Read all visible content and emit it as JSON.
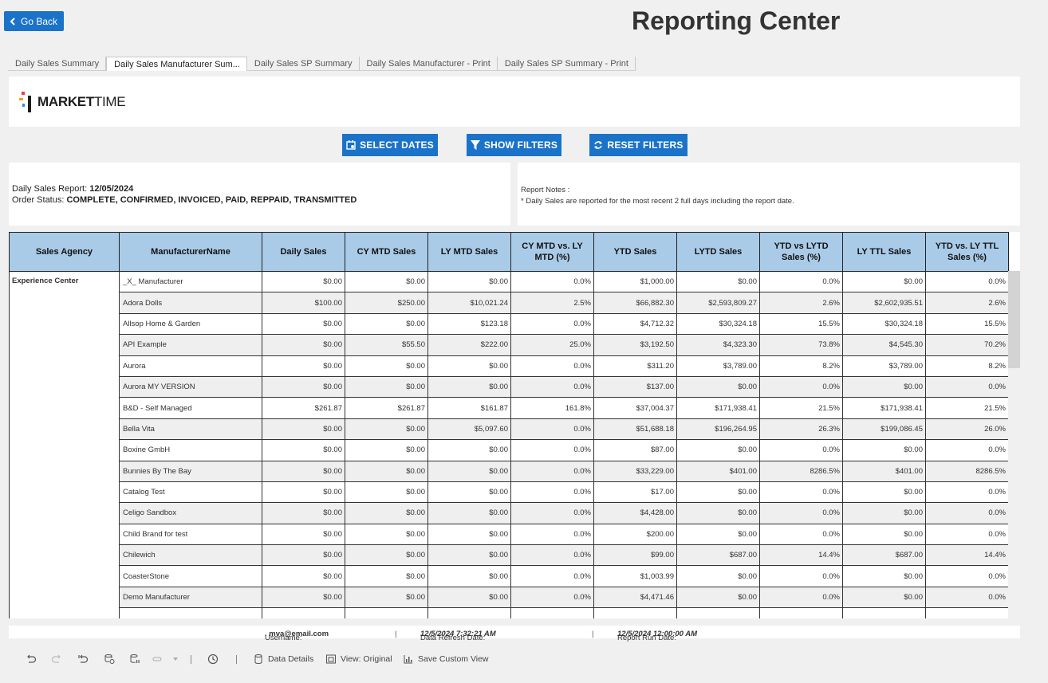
{
  "header": {
    "back_label": "Go Back",
    "title": "Reporting Center"
  },
  "tabs": [
    {
      "label": "Daily Sales Summary",
      "active": false
    },
    {
      "label": "Daily Sales Manufacturer Sum...",
      "active": true
    },
    {
      "label": "Daily Sales SP Summary",
      "active": false
    },
    {
      "label": "Daily Sales Manufacturer - Print",
      "active": false
    },
    {
      "label": "Daily Sales SP Summary - Print",
      "active": false
    }
  ],
  "logo": {
    "bold": "MARKET",
    "light": "TIME"
  },
  "actions": {
    "select_dates": "SELECT DATES",
    "show_filters": "SHOW FILTERS",
    "reset_filters": "RESET FILTERS"
  },
  "report_info": {
    "date_label": "Daily Sales Report:",
    "date_value": "12/05/2024",
    "status_label": "Order Status:",
    "status_value": "COMPLETE, CONFIRMED, INVOICED, PAID, REPPAID, TRANSMITTED",
    "notes_label": "Report Notes :",
    "notes_text": "* Daily Sales are reported for the most recent 2 full days including the report date."
  },
  "table": {
    "columns": [
      "Sales Agency",
      "ManufacturerName",
      "Daily Sales",
      "CY MTD Sales",
      "LY MTD Sales",
      "CY MTD vs. LY MTD (%)",
      "YTD Sales",
      "LYTD Sales",
      "YTD vs LYTD Sales (%)",
      "LY TTL Sales",
      "YTD vs. LY TTL Sales (%)"
    ],
    "agency": "Experience Center",
    "rows": [
      [
        "_X_ Manufacturer",
        "$0.00",
        "$0.00",
        "$0.00",
        "0.0%",
        "$1,000.00",
        "$0.00",
        "0.0%",
        "$0.00",
        "0.0%"
      ],
      [
        "Adora Dolls",
        "$100.00",
        "$250.00",
        "$10,021.24",
        "2.5%",
        "$66,882.30",
        "$2,593,809.27",
        "2.6%",
        "$2,602,935.51",
        "2.6%"
      ],
      [
        "Allsop Home & Garden",
        "$0.00",
        "$0.00",
        "$123.18",
        "0.0%",
        "$4,712.32",
        "$30,324.18",
        "15.5%",
        "$30,324.18",
        "15.5%"
      ],
      [
        "API Example",
        "$0.00",
        "$55.50",
        "$222.00",
        "25.0%",
        "$3,192.50",
        "$4,323.30",
        "73.8%",
        "$4,545.30",
        "70.2%"
      ],
      [
        "Aurora",
        "$0.00",
        "$0.00",
        "$0.00",
        "0.0%",
        "$311.20",
        "$3,789.00",
        "8.2%",
        "$3,789.00",
        "8.2%"
      ],
      [
        "Aurora MY VERSION",
        "$0.00",
        "$0.00",
        "$0.00",
        "0.0%",
        "$137.00",
        "$0.00",
        "0.0%",
        "$0.00",
        "0.0%"
      ],
      [
        "B&D - Self Managed",
        "$261.87",
        "$261.87",
        "$161.87",
        "161.8%",
        "$37,004.37",
        "$171,938.41",
        "21.5%",
        "$171,938.41",
        "21.5%"
      ],
      [
        "Bella Vita",
        "$0.00",
        "$0.00",
        "$5,097.60",
        "0.0%",
        "$51,688.18",
        "$196,264.95",
        "26.3%",
        "$199,086.45",
        "26.0%"
      ],
      [
        "Boxine GmbH",
        "$0.00",
        "$0.00",
        "$0.00",
        "0.0%",
        "$87.00",
        "$0.00",
        "0.0%",
        "$0.00",
        "0.0%"
      ],
      [
        "Bunnies By The Bay",
        "$0.00",
        "$0.00",
        "$0.00",
        "0.0%",
        "$33,229.00",
        "$401.00",
        "8286.5%",
        "$401.00",
        "8286.5%"
      ],
      [
        "Catalog Test",
        "$0.00",
        "$0.00",
        "$0.00",
        "0.0%",
        "$17.00",
        "$0.00",
        "0.0%",
        "$0.00",
        "0.0%"
      ],
      [
        "Celigo Sandbox",
        "$0.00",
        "$0.00",
        "$0.00",
        "0.0%",
        "$4,428.00",
        "$0.00",
        "0.0%",
        "$0.00",
        "0.0%"
      ],
      [
        "Child Brand for test",
        "$0.00",
        "$0.00",
        "$0.00",
        "0.0%",
        "$200.00",
        "$0.00",
        "0.0%",
        "$0.00",
        "0.0%"
      ],
      [
        "Chilewich",
        "$0.00",
        "$0.00",
        "$0.00",
        "0.0%",
        "$99.00",
        "$687.00",
        "14.4%",
        "$687.00",
        "14.4%"
      ],
      [
        "CoasterStone",
        "$0.00",
        "$0.00",
        "$0.00",
        "0.0%",
        "$1,003.99",
        "$0.00",
        "0.0%",
        "$0.00",
        "0.0%"
      ],
      [
        "Demo Manufacturer",
        "$0.00",
        "$0.00",
        "$0.00",
        "0.0%",
        "$4,471.46",
        "$0.00",
        "0.0%",
        "$0.00",
        "0.0%"
      ]
    ]
  },
  "footer": {
    "username_label": "Username:",
    "username_value": ". mva@email.com",
    "refresh_label": "Data Refresh Date:",
    "refresh_value": "12/5/2024 7:32:21 AM",
    "run_label": "Report Run Date:",
    "run_value": "12/5/2024 12:00:00 AM"
  },
  "toolbar": {
    "data_details": "Data Details",
    "view_original": "View: Original",
    "save_custom_view": "Save Custom View"
  },
  "colors": {
    "accent": "#1a73c9",
    "header_bg": "#a9cbe8"
  }
}
